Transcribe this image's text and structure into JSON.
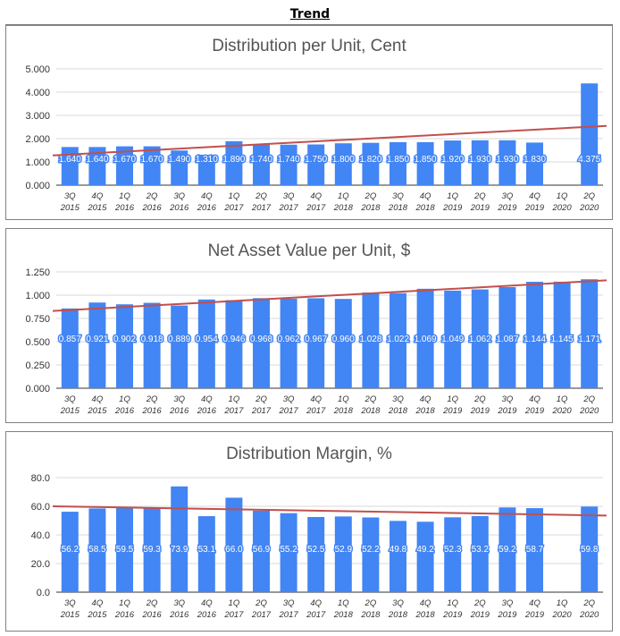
{
  "title": "Trend",
  "colors": {
    "bar": "#4285f4",
    "trend": "#c0504d",
    "grid": "#d9d9d9",
    "axis_text": "#333333",
    "title_text": "#555555"
  },
  "chart_data": [
    {
      "type": "bar",
      "title": "Distribution per Unit, Cent",
      "xlabel": "",
      "ylabel": "",
      "ylim": [
        0,
        5
      ],
      "yticks": [
        "0.000",
        "1.000",
        "2.000",
        "3.000",
        "4.000",
        "5.000"
      ],
      "categories": [
        [
          "3Q",
          "2015"
        ],
        [
          "4Q",
          "2015"
        ],
        [
          "1Q",
          "2016"
        ],
        [
          "2Q",
          "2016"
        ],
        [
          "3Q",
          "2016"
        ],
        [
          "4Q",
          "2016"
        ],
        [
          "1Q",
          "2017"
        ],
        [
          "2Q",
          "2017"
        ],
        [
          "3Q",
          "2017"
        ],
        [
          "4Q",
          "2017"
        ],
        [
          "1Q",
          "2018"
        ],
        [
          "2Q",
          "2018"
        ],
        [
          "3Q",
          "2018"
        ],
        [
          "4Q",
          "2018"
        ],
        [
          "1Q",
          "2019"
        ],
        [
          "2Q",
          "2019"
        ],
        [
          "3Q",
          "2019"
        ],
        [
          "4Q",
          "2019"
        ],
        [
          "1Q",
          "2020"
        ],
        [
          "2Q",
          "2020"
        ]
      ],
      "values": [
        1.64,
        1.64,
        1.67,
        1.67,
        1.49,
        1.31,
        1.89,
        1.74,
        1.74,
        1.75,
        1.8,
        1.82,
        1.85,
        1.85,
        1.92,
        1.93,
        1.93,
        1.83,
        null,
        4.375
      ],
      "data_labels": [
        "1.640",
        "1.640",
        "1.670",
        "1.670",
        "1.490",
        "1.310",
        "1.890",
        "1.740",
        "1.740",
        "1.750",
        "1.800",
        "1.820",
        "1.850",
        "1.850",
        "1.920",
        "1.930",
        "1.930",
        "1.830",
        "",
        "4.375"
      ],
      "label_value": 1.0,
      "trendline": [
        1.28,
        2.55
      ]
    },
    {
      "type": "bar",
      "title": "Net Asset Value per Unit, $",
      "xlabel": "",
      "ylabel": "",
      "ylim": [
        0,
        1.25
      ],
      "yticks": [
        "0.000",
        "0.250",
        "0.500",
        "0.750",
        "1.000",
        "1.250"
      ],
      "categories": [
        [
          "3Q",
          "2015"
        ],
        [
          "4Q",
          "2015"
        ],
        [
          "1Q",
          "2016"
        ],
        [
          "2Q",
          "2016"
        ],
        [
          "3Q",
          "2016"
        ],
        [
          "4Q",
          "2016"
        ],
        [
          "1Q",
          "2017"
        ],
        [
          "2Q",
          "2017"
        ],
        [
          "3Q",
          "2017"
        ],
        [
          "4Q",
          "2017"
        ],
        [
          "1Q",
          "2018"
        ],
        [
          "2Q",
          "2018"
        ],
        [
          "3Q",
          "2018"
        ],
        [
          "4Q",
          "2018"
        ],
        [
          "1Q",
          "2019"
        ],
        [
          "2Q",
          "2019"
        ],
        [
          "3Q",
          "2019"
        ],
        [
          "4Q",
          "2019"
        ],
        [
          "1Q",
          "2020"
        ],
        [
          "2Q",
          "2020"
        ]
      ],
      "values": [
        0.857,
        0.921,
        0.902,
        0.918,
        0.889,
        0.954,
        0.946,
        0.968,
        0.962,
        0.967,
        0.96,
        1.028,
        1.022,
        1.069,
        1.049,
        1.062,
        1.087,
        1.144,
        1.145,
        1.171
      ],
      "data_labels": [
        "0.857",
        "0.921",
        "0.902",
        "0.918",
        "0.889",
        "0.954",
        "0.946",
        "0.968",
        "0.962",
        "0.967",
        "0.960",
        "1.028",
        "1.022",
        "1.069",
        "1.049",
        "1.062",
        "1.087",
        "1.144",
        "1.145",
        "1.171"
      ],
      "label_value": 0.5,
      "trendline": [
        0.83,
        1.16
      ]
    },
    {
      "type": "bar",
      "title": "Distribution Margin, %",
      "xlabel": "",
      "ylabel": "",
      "ylim": [
        0,
        80
      ],
      "yticks": [
        "0.0",
        "20.0",
        "40.0",
        "60.0",
        "80.0"
      ],
      "categories": [
        [
          "3Q",
          "2015"
        ],
        [
          "4Q",
          "2015"
        ],
        [
          "1Q",
          "2016"
        ],
        [
          "2Q",
          "2016"
        ],
        [
          "3Q",
          "2016"
        ],
        [
          "4Q",
          "2016"
        ],
        [
          "1Q",
          "2017"
        ],
        [
          "2Q",
          "2017"
        ],
        [
          "3Q",
          "2017"
        ],
        [
          "4Q",
          "2017"
        ],
        [
          "1Q",
          "2018"
        ],
        [
          "2Q",
          "2018"
        ],
        [
          "3Q",
          "2018"
        ],
        [
          "4Q",
          "2018"
        ],
        [
          "1Q",
          "2019"
        ],
        [
          "2Q",
          "2019"
        ],
        [
          "3Q",
          "2019"
        ],
        [
          "4Q",
          "2019"
        ],
        [
          "1Q",
          "2020"
        ],
        [
          "2Q",
          "2020"
        ]
      ],
      "values": [
        56.2,
        58.5,
        59.5,
        59.3,
        73.9,
        53.1,
        66.0,
        56.9,
        55.2,
        52.5,
        52.9,
        52.2,
        49.8,
        49.2,
        52.3,
        53.2,
        59.2,
        58.7,
        null,
        59.8
      ],
      "data_labels": [
        "56.2",
        "58.5",
        "59.5",
        "59.3",
        "73.9",
        "53.1",
        "66.0",
        "56.9",
        "55.2",
        "52.5",
        "52.9",
        "52.2",
        "49.8",
        "49.2",
        "52.3",
        "53.2",
        "59.2",
        "58.7",
        "",
        "59.8"
      ],
      "label_value": 28,
      "trendline": [
        60.0,
        53.5
      ]
    }
  ]
}
